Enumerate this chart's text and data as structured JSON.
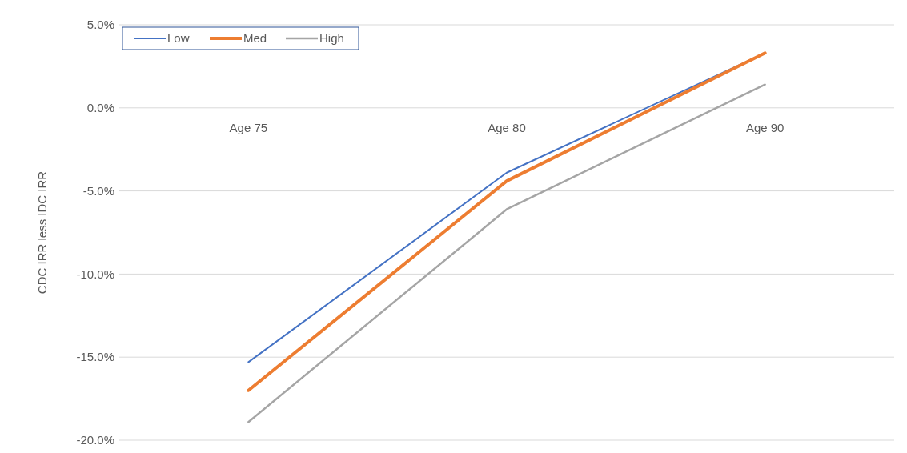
{
  "chart_data": {
    "type": "line",
    "ylabel": "CDC IRR less IDC IRR",
    "categories": [
      "Age 75",
      "Age 80",
      "Age 90"
    ],
    "series": [
      {
        "name": "Low",
        "color": "#4472c4",
        "values": [
          -15.3,
          -3.9,
          3.3
        ]
      },
      {
        "name": "Med",
        "color": "#ed7d31",
        "values": [
          -17.0,
          -4.4,
          3.3
        ]
      },
      {
        "name": "High",
        "color": "#a5a5a5",
        "values": [
          -18.9,
          -6.1,
          1.4
        ]
      }
    ],
    "ylim": [
      -20,
      5
    ],
    "yticks": [
      {
        "value": -20,
        "label": "-20.0%"
      },
      {
        "value": -15,
        "label": "-15.0%"
      },
      {
        "value": -10,
        "label": "-10.0%"
      },
      {
        "value": -5,
        "label": "-5.0%"
      },
      {
        "value": 0,
        "label": "0.0%"
      },
      {
        "value": 5,
        "label": "5.0%"
      }
    ],
    "grid": "y",
    "legend": "top left",
    "marker": "none",
    "line_style": "solid"
  }
}
